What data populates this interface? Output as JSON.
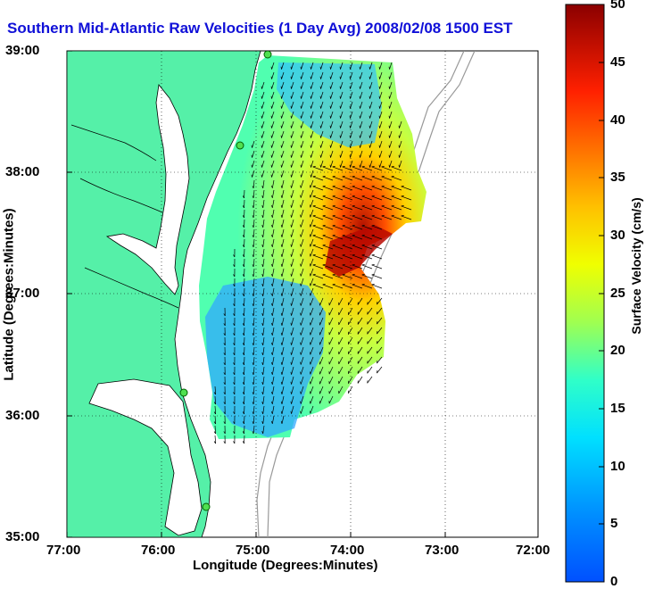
{
  "title": "Southern Mid-Atlantic Raw Velocities (1 Day Avg) 2008/02/08 1500 EST",
  "axes": {
    "xlabel": "Longitude (Degrees:Minutes)",
    "ylabel": "Latitude (Degrees:Minutes)",
    "xticks": [
      "77:00",
      "76:00",
      "75:00",
      "74:00",
      "73:00",
      "72:00"
    ],
    "yticks": [
      "39:00",
      "38:00",
      "37:00",
      "36:00",
      "35:00"
    ],
    "grid": "dotted"
  },
  "colorbar": {
    "label": "Surface Velocity (cm/s)",
    "ticks": [
      "50",
      "45",
      "40",
      "35",
      "30",
      "25",
      "20",
      "15",
      "10",
      "5",
      "0"
    ],
    "range": [
      0,
      50
    ],
    "colormap": "jet"
  },
  "map": {
    "extent": {
      "lon": [
        -77,
        -72
      ],
      "lat": [
        35,
        39
      ]
    },
    "land_color": "#55f0a8",
    "features": [
      "coastline",
      "bathymetry-contours",
      "hf-radar-stations",
      "velocity-arrows"
    ]
  }
}
